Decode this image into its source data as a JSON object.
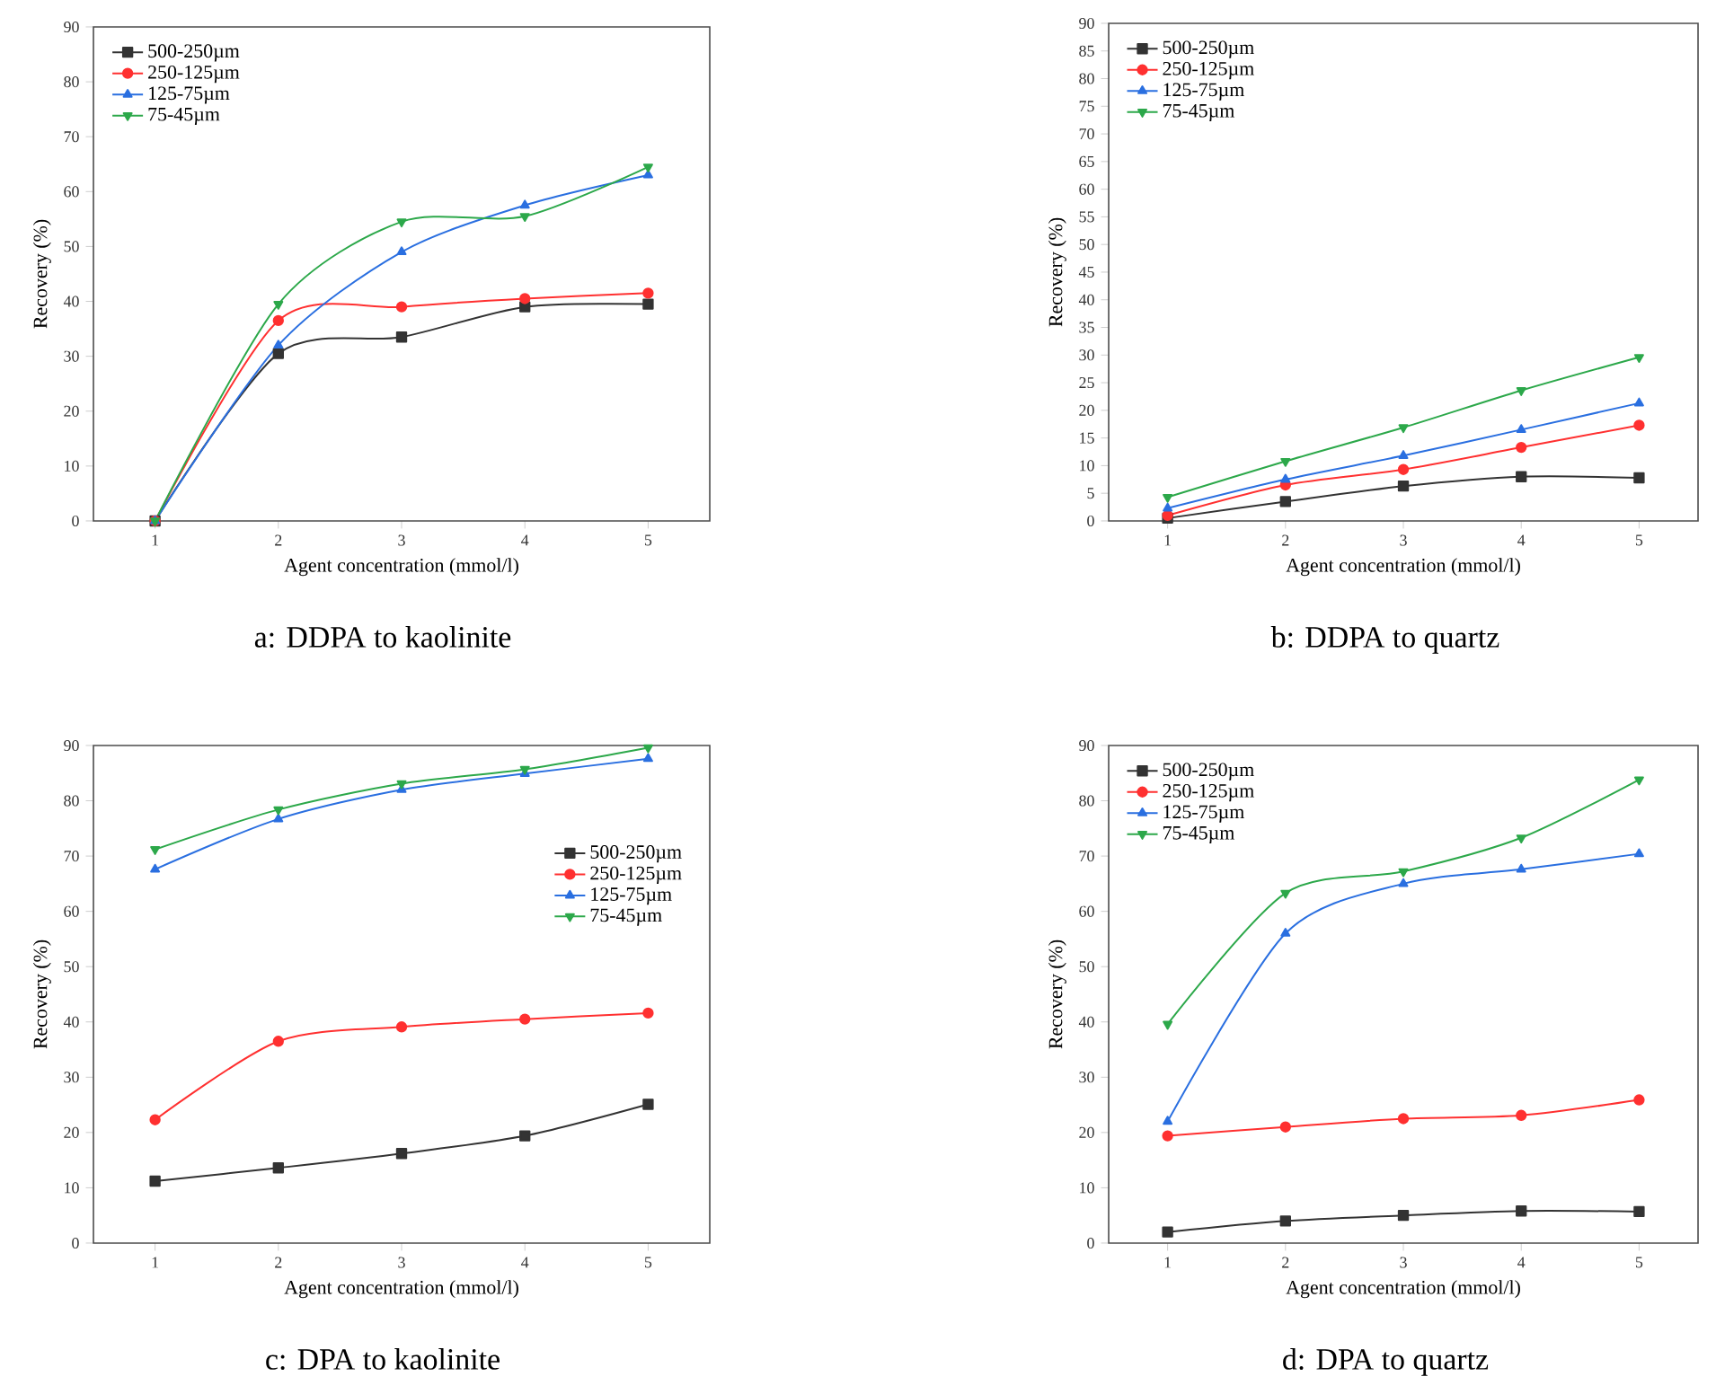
{
  "chart_data": [
    {
      "type": "line",
      "title": "a: DDPA to kaolinite",
      "xlabel": "Agent concentration (mmol/l)",
      "ylabel": "Recovery (%)",
      "x": [
        1,
        2,
        3,
        4,
        5
      ],
      "xlim": [
        0.5,
        5.5
      ],
      "xticks": [
        1,
        2,
        3,
        4,
        5
      ],
      "ylim": [
        0,
        90
      ],
      "yticks": [
        0,
        10,
        20,
        30,
        40,
        50,
        60,
        70,
        80,
        90
      ],
      "legend": "top left",
      "grid": false,
      "series": [
        {
          "name": "500-250µm",
          "color": "#333333",
          "marker": "square",
          "values": [
            0,
            30.5,
            33.5,
            39,
            39.5
          ]
        },
        {
          "name": "250-125µm",
          "color": "#ff3030",
          "marker": "circle",
          "values": [
            0,
            36.5,
            39,
            40.5,
            41.5
          ]
        },
        {
          "name": "125-75µm",
          "color": "#2a6fe0",
          "marker": "triangle",
          "values": [
            0,
            32,
            49,
            57.5,
            63
          ]
        },
        {
          "name": "75-45µm",
          "color": "#2ca84a",
          "marker": "triangle-down",
          "values": [
            0,
            39.5,
            54.5,
            55.5,
            64.5
          ]
        }
      ]
    },
    {
      "type": "line",
      "title": "b: DDPA to quartz",
      "xlabel": "Agent concentration (mmol/l)",
      "ylabel": "Recovery (%)",
      "x": [
        1,
        2,
        3,
        4,
        5
      ],
      "xlim": [
        0.5,
        5.5
      ],
      "xticks": [
        1,
        2,
        3,
        4,
        5
      ],
      "ylim": [
        0,
        90
      ],
      "yticks": [
        0,
        5,
        10,
        15,
        20,
        25,
        30,
        35,
        40,
        45,
        50,
        55,
        60,
        65,
        70,
        75,
        80,
        85,
        90
      ],
      "legend": "top left",
      "grid": false,
      "series": [
        {
          "name": "500-250µm",
          "color": "#333333",
          "marker": "square",
          "values": [
            0.5,
            3.5,
            6.3,
            8,
            7.8
          ]
        },
        {
          "name": "250-125µm",
          "color": "#ff3030",
          "marker": "circle",
          "values": [
            1,
            6.5,
            9.3,
            13.3,
            17.3
          ]
        },
        {
          "name": "125-75µm",
          "color": "#2a6fe0",
          "marker": "triangle",
          "values": [
            2.3,
            7.5,
            11.8,
            16.5,
            21.3
          ]
        },
        {
          "name": "75-45µm",
          "color": "#2ca84a",
          "marker": "triangle-down",
          "values": [
            4.3,
            10.8,
            16.9,
            23.6,
            29.6
          ]
        }
      ]
    },
    {
      "type": "line",
      "title": "c: DPA to kaolinite",
      "xlabel": "Agent concentration (mmol/l)",
      "ylabel": "Recovery (%)",
      "x": [
        1,
        2,
        3,
        4,
        5
      ],
      "xlim": [
        0.5,
        5.5
      ],
      "xticks": [
        1,
        2,
        3,
        4,
        5
      ],
      "ylim": [
        0,
        90
      ],
      "yticks": [
        0,
        10,
        20,
        30,
        40,
        50,
        60,
        70,
        80,
        90
      ],
      "legend": "right",
      "grid": false,
      "series": [
        {
          "name": "500-250µm",
          "color": "#333333",
          "marker": "square",
          "values": [
            11.2,
            13.6,
            16.2,
            19.4,
            25.1
          ]
        },
        {
          "name": "250-125µm",
          "color": "#ff3030",
          "marker": "circle",
          "values": [
            22.3,
            36.5,
            39.1,
            40.5,
            41.6
          ]
        },
        {
          "name": "125-75µm",
          "color": "#2a6fe0",
          "marker": "triangle",
          "values": [
            67.6,
            76.7,
            82.0,
            84.9,
            87.6
          ]
        },
        {
          "name": "75-45µm",
          "color": "#2ca84a",
          "marker": "triangle-down",
          "values": [
            71.2,
            78.4,
            83.1,
            85.7,
            89.6
          ]
        }
      ]
    },
    {
      "type": "line",
      "title": "d: DPA to quartz",
      "xlabel": "Agent concentration (mmol/l)",
      "ylabel": "Recovery (%)",
      "x": [
        1,
        2,
        3,
        4,
        5
      ],
      "xlim": [
        0.5,
        5.5
      ],
      "xticks": [
        1,
        2,
        3,
        4,
        5
      ],
      "ylim": [
        0,
        90
      ],
      "yticks": [
        0,
        10,
        20,
        30,
        40,
        50,
        60,
        70,
        80,
        90
      ],
      "legend": "top left",
      "grid": false,
      "series": [
        {
          "name": "500-250µm",
          "color": "#333333",
          "marker": "square",
          "values": [
            2,
            4,
            5,
            5.8,
            5.7
          ]
        },
        {
          "name": "250-125µm",
          "color": "#ff3030",
          "marker": "circle",
          "values": [
            19.4,
            21,
            22.5,
            23.1,
            25.9
          ]
        },
        {
          "name": "125-75µm",
          "color": "#2a6fe0",
          "marker": "triangle",
          "values": [
            22,
            56,
            65,
            67.6,
            70.4
          ]
        },
        {
          "name": "75-45µm",
          "color": "#2ca84a",
          "marker": "triangle-down",
          "values": [
            39.6,
            63.3,
            67.2,
            73.3,
            83.8
          ]
        }
      ]
    }
  ]
}
